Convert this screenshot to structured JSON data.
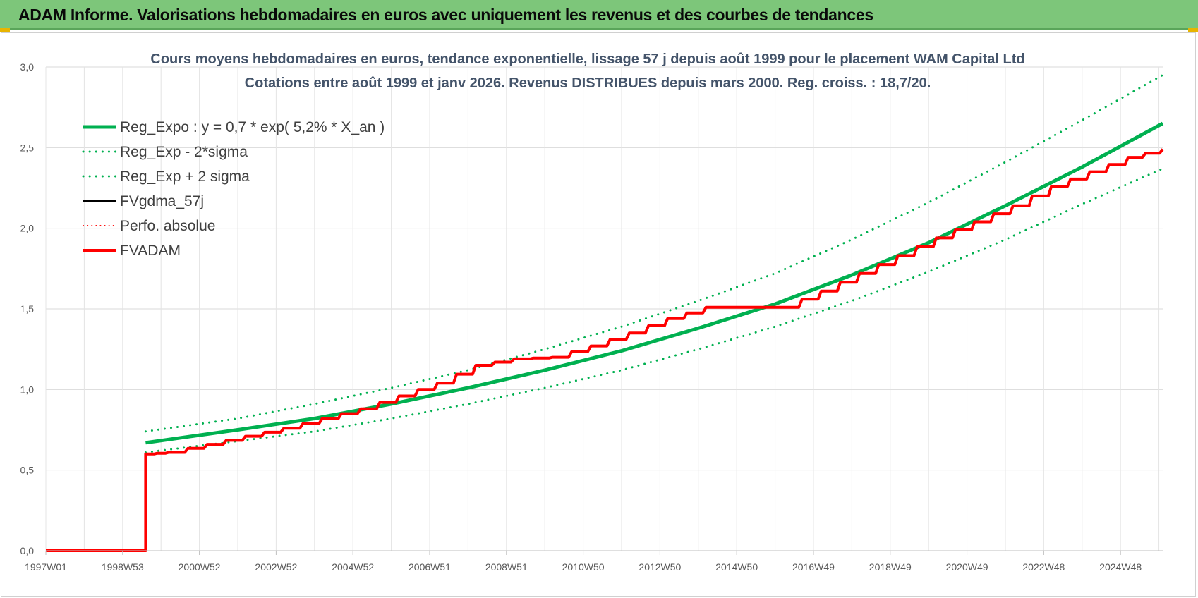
{
  "page": {
    "header_title": "ADAM Informe. Valorisations hebdomadaires en euros avec uniquement les revenus et des courbes de tendances"
  },
  "colors": {
    "header_bg": "#7dc67a",
    "trend_green": "#00b050",
    "black": "#000000",
    "red": "#ff0000",
    "grid": "#d9d9d9"
  },
  "chart_data": {
    "type": "line",
    "title": "Cours moyens hebdomadaires en euros, tendance exponentielle, lissage 57 j depuis août 1999 pour le placement WAM Capital Ltd",
    "subtitle": "Cotations entre août 1999 et janv 2026.  Revenus DISTRIBUES depuis mars 2000. Reg. croiss. : 18,7/20.",
    "xlabel": "",
    "ylabel": "",
    "x_tick_labels": [
      "1997W01",
      "1998W53",
      "2000W52",
      "2002W52",
      "2004W52",
      "2006W51",
      "2008W51",
      "2010W50",
      "2012W50",
      "2014W50",
      "2016W49",
      "2018W49",
      "2020W49",
      "2022W48",
      "2024W48"
    ],
    "x_tick_years": [
      1997.0,
      1999.0,
      2001.0,
      2003.0,
      2005.0,
      2007.0,
      2009.0,
      2011.0,
      2013.0,
      2015.0,
      2017.0,
      2019.0,
      2021.0,
      2023.0,
      2025.0
    ],
    "xlim": [
      1997.0,
      2026.1
    ],
    "ylim": [
      0,
      3.0
    ],
    "y_tick_labels": [
      "0,0",
      "0,5",
      "1,0",
      "1,5",
      "2,0",
      "2,5",
      "3,0"
    ],
    "y_ticks": [
      0,
      0.5,
      1.0,
      1.5,
      2.0,
      2.5,
      3.0
    ],
    "grid": true,
    "legend_position": "top-left",
    "legend": [
      {
        "name": "Reg_Expo : y = 0,7 * exp( 5,2% *  X_an )",
        "color": "#00b050",
        "style": "solid",
        "width": 5
      },
      {
        "name": "Reg_Exp - 2*sigma",
        "color": "#00b050",
        "style": "dotted",
        "width": 3
      },
      {
        "name": "Reg_Exp + 2 sigma",
        "color": "#00b050",
        "style": "dotted",
        "width": 3
      },
      {
        "name": "FVgdma_57j",
        "color": "#000000",
        "style": "solid",
        "width": 3
      },
      {
        "name": "Perfo. absolue",
        "color": "#ff0000",
        "style": "dotted",
        "width": 2
      },
      {
        "name": "FVADAM",
        "color": "#ff0000",
        "style": "solid",
        "width": 4
      }
    ],
    "series": [
      {
        "name": "Reg_Expo : y = 0,7 * exp( 5,2% *  X_an )",
        "x": [
          1999.6,
          2002,
          2004,
          2006,
          2008,
          2010,
          2012,
          2014,
          2016,
          2018,
          2020,
          2022,
          2024,
          2026.1
        ],
        "y": [
          0.67,
          0.75,
          0.82,
          0.91,
          1.01,
          1.12,
          1.24,
          1.38,
          1.53,
          1.71,
          1.91,
          2.14,
          2.38,
          2.65
        ]
      },
      {
        "name": "Reg_Exp - 2*sigma",
        "x": [
          1999.6,
          2002,
          2004,
          2006,
          2008,
          2010,
          2012,
          2014,
          2016,
          2018,
          2020,
          2022,
          2024,
          2026.1
        ],
        "y": [
          0.61,
          0.68,
          0.74,
          0.82,
          0.91,
          1.01,
          1.12,
          1.25,
          1.39,
          1.55,
          1.73,
          1.93,
          2.15,
          2.37
        ]
      },
      {
        "name": "Reg_Exp + 2 sigma",
        "x": [
          1999.6,
          2002,
          2004,
          2006,
          2008,
          2010,
          2012,
          2014,
          2016,
          2018,
          2020,
          2022,
          2024,
          2026.1
        ],
        "y": [
          0.74,
          0.82,
          0.91,
          1.01,
          1.12,
          1.25,
          1.39,
          1.55,
          1.72,
          1.93,
          2.16,
          2.41,
          2.67,
          2.95
        ]
      },
      {
        "name": "FVgdma_57j",
        "x": [
          1997.0,
          1999.6,
          1999.6,
          2000.2,
          2001.2,
          2002.2,
          2003.2,
          2004.2,
          2005.2,
          2006.2,
          2007.2,
          2008.2,
          2009.2,
          2010.2,
          2011.2,
          2012.2,
          2013.2,
          2014.2,
          2015.2,
          2016.2,
          2017.2,
          2018.2,
          2019.2,
          2020.2,
          2021.2,
          2022.2,
          2023.2,
          2024.2,
          2025.2,
          2026.1
        ],
        "y": [
          0.0,
          0.0,
          0.6,
          0.61,
          0.66,
          0.71,
          0.76,
          0.82,
          0.88,
          0.96,
          1.04,
          1.15,
          1.19,
          1.2,
          1.27,
          1.35,
          1.44,
          1.51,
          1.51,
          1.51,
          1.61,
          1.72,
          1.83,
          1.94,
          2.04,
          2.14,
          2.26,
          2.35,
          2.44,
          2.49
        ]
      },
      {
        "name": "FVADAM",
        "x": [
          1997.0,
          1999.6,
          1999.6,
          2000.2,
          2001.2,
          2002.2,
          2003.2,
          2004.2,
          2005.2,
          2006.2,
          2007.2,
          2008.2,
          2009.2,
          2010.2,
          2011.2,
          2012.2,
          2013.2,
          2014.2,
          2015.2,
          2016.2,
          2017.2,
          2018.2,
          2019.2,
          2020.2,
          2021.2,
          2022.2,
          2023.2,
          2024.2,
          2025.2,
          2026.1
        ],
        "y": [
          0.0,
          0.0,
          0.6,
          0.61,
          0.66,
          0.71,
          0.76,
          0.82,
          0.88,
          0.96,
          1.04,
          1.15,
          1.19,
          1.2,
          1.27,
          1.35,
          1.44,
          1.51,
          1.51,
          1.51,
          1.61,
          1.72,
          1.83,
          1.94,
          2.04,
          2.14,
          2.26,
          2.35,
          2.44,
          2.49
        ]
      }
    ]
  }
}
